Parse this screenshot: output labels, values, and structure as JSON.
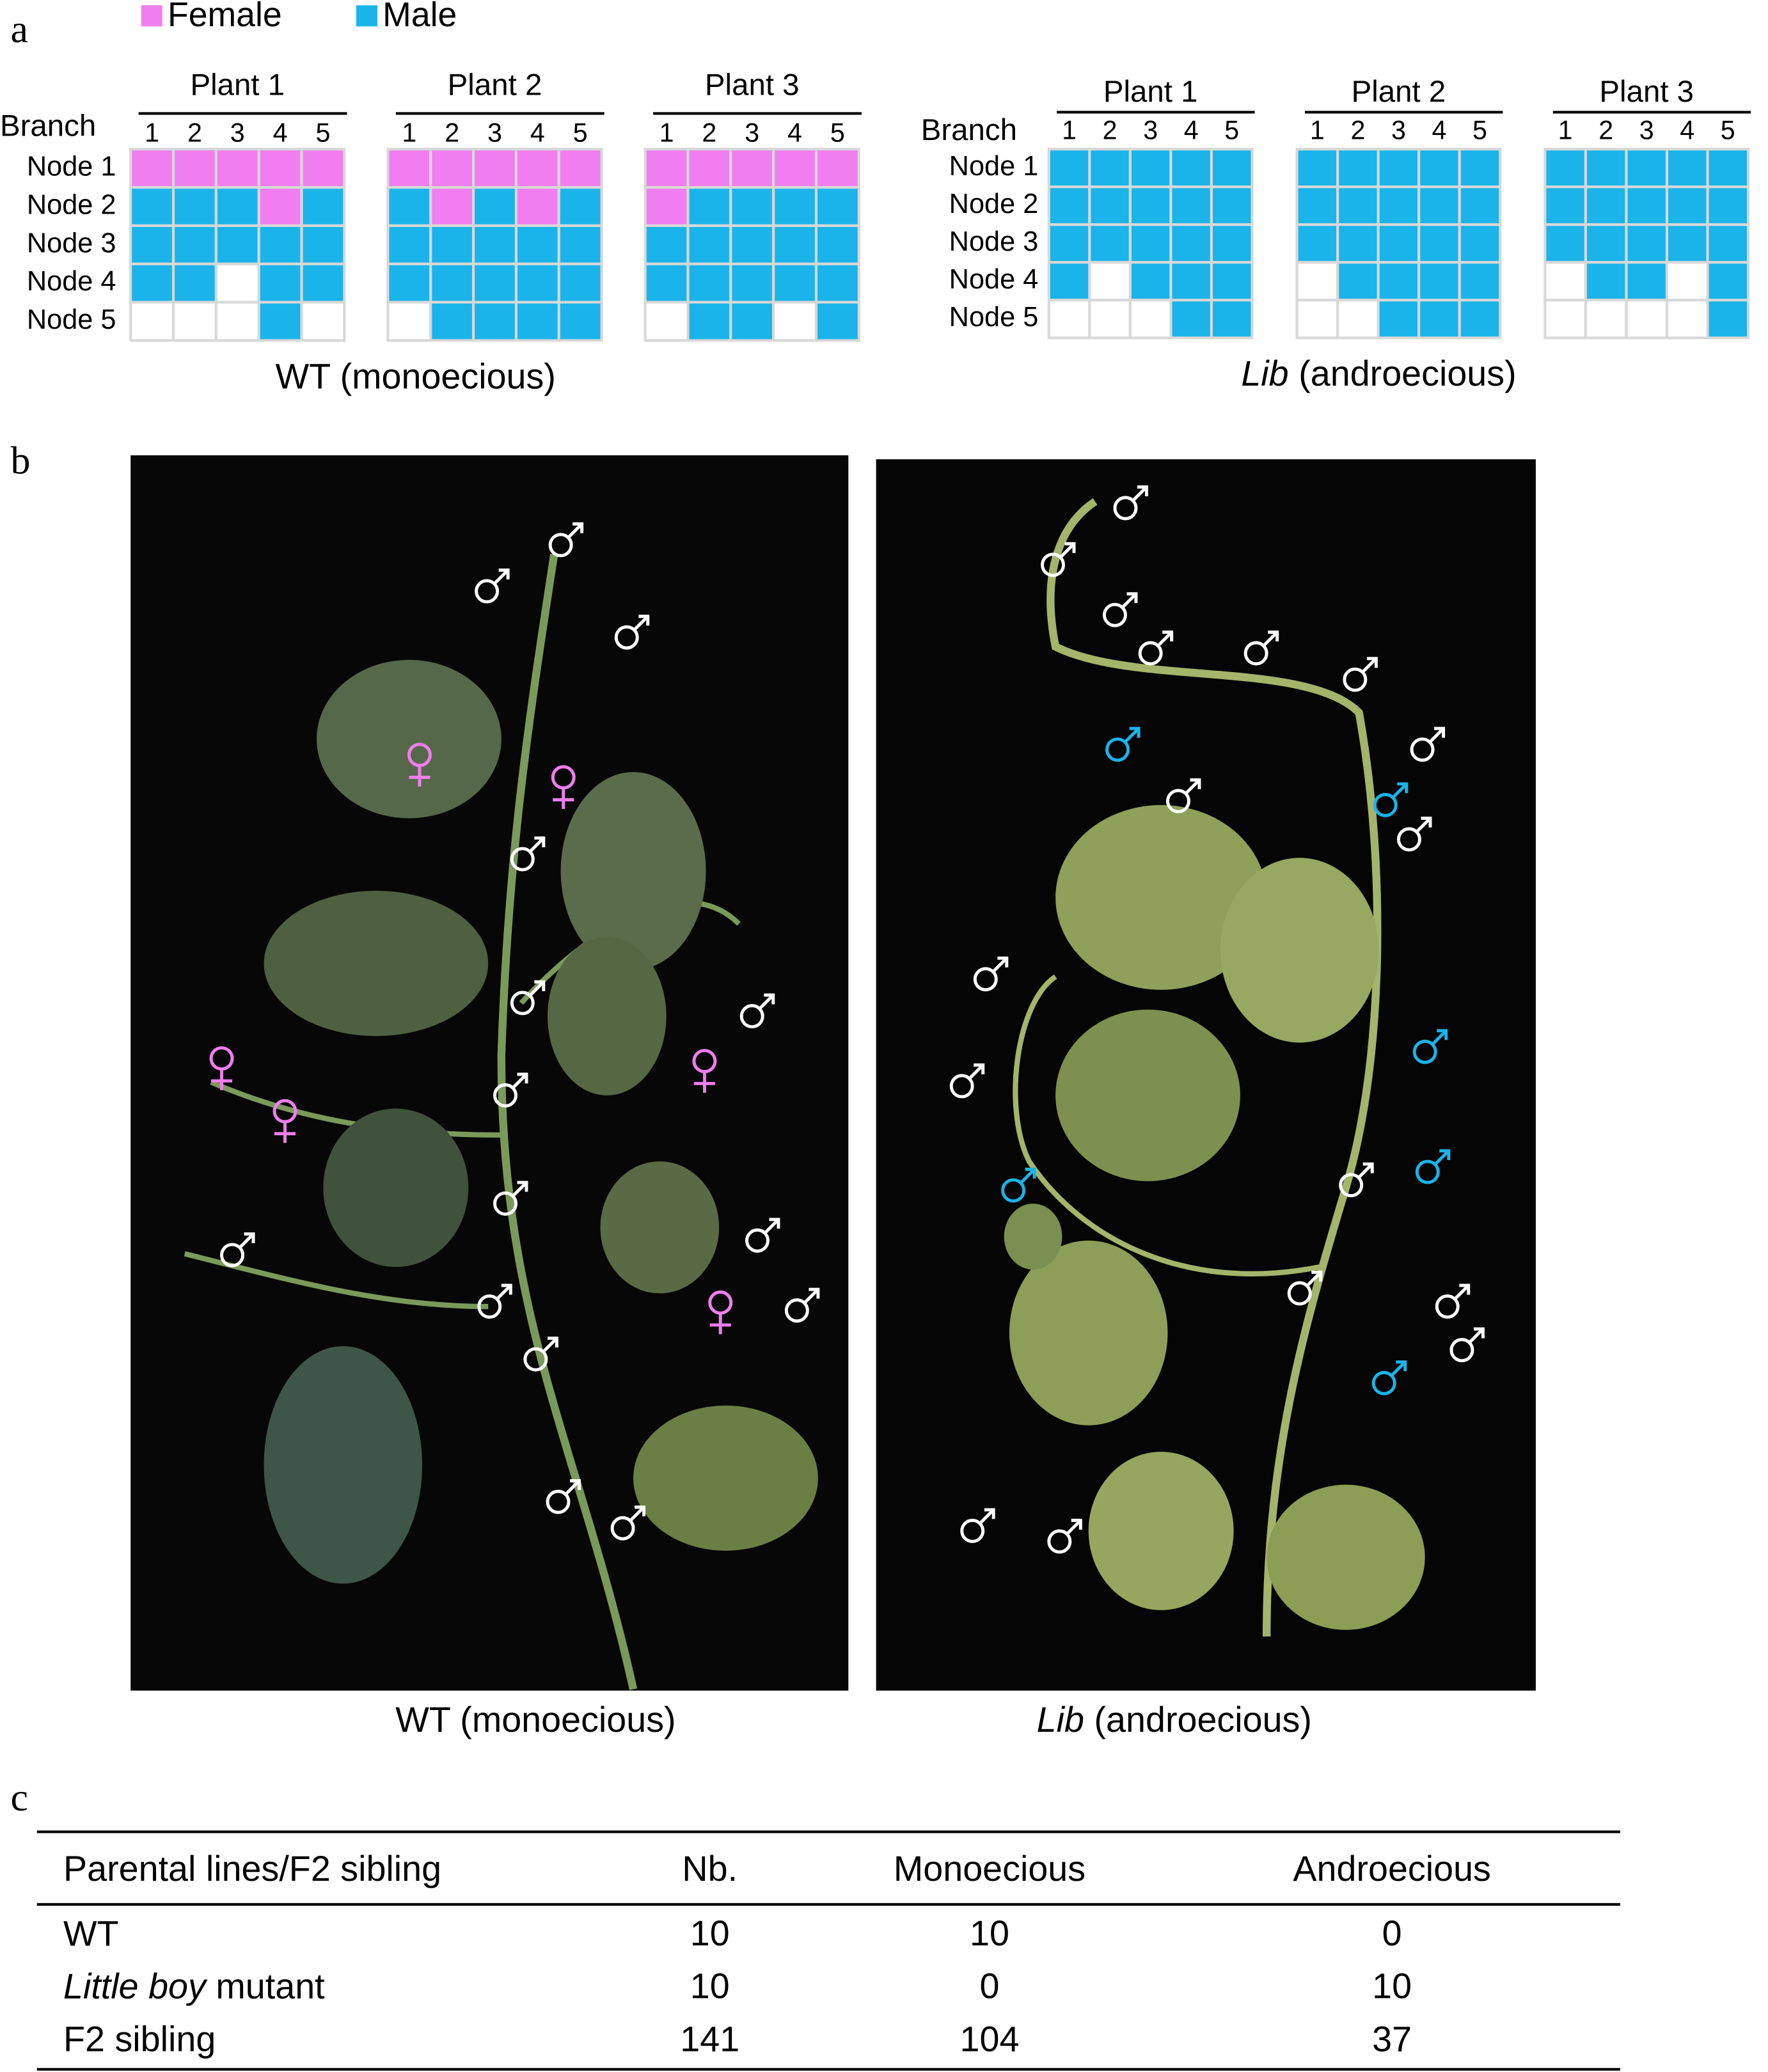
{
  "panel_a": {
    "label": "a",
    "legend": [
      {
        "name": "Female",
        "color": "#f07ef0"
      },
      {
        "name": "Male",
        "color": "#1ab4ea"
      }
    ],
    "groups": [
      {
        "caption": "WT (monoecious)",
        "branch_label": "Branch",
        "node_labels": [
          "Node 1",
          "Node 2",
          "Node 3",
          "Node 4",
          "Node 5"
        ],
        "plants": [
          {
            "name": "Plant 1",
            "branches": [
              1,
              2,
              3,
              4,
              5
            ],
            "cells": [
              [
                "Female",
                "Female",
                "Female",
                "Female",
                "Female"
              ],
              [
                "Male",
                "Male",
                "Male",
                "Female",
                "Male"
              ],
              [
                "Male",
                "Male",
                "Male",
                "Male",
                "Male"
              ],
              [
                "Male",
                "Male",
                null,
                "Male",
                "Male"
              ],
              [
                null,
                null,
                null,
                "Male",
                null
              ]
            ]
          },
          {
            "name": "Plant 2",
            "branches": [
              1,
              2,
              3,
              4,
              5
            ],
            "cells": [
              [
                "Female",
                "Female",
                "Female",
                "Female",
                "Female"
              ],
              [
                "Male",
                "Female",
                "Male",
                "Female",
                "Male"
              ],
              [
                "Male",
                "Male",
                "Male",
                "Male",
                "Male"
              ],
              [
                "Male",
                "Male",
                "Male",
                "Male",
                "Male"
              ],
              [
                null,
                "Male",
                "Male",
                "Male",
                "Male"
              ]
            ]
          },
          {
            "name": "Plant 3",
            "branches": [
              1,
              2,
              3,
              4,
              5
            ],
            "cells": [
              [
                "Female",
                "Female",
                "Female",
                "Female",
                "Female"
              ],
              [
                "Female",
                "Male",
                "Male",
                "Male",
                "Male"
              ],
              [
                "Male",
                "Male",
                "Male",
                "Male",
                "Male"
              ],
              [
                "Male",
                "Male",
                "Male",
                "Male",
                "Male"
              ],
              [
                null,
                "Male",
                "Male",
                null,
                "Male"
              ]
            ]
          }
        ]
      },
      {
        "caption_italic": "Lib",
        "caption": "(androecious)",
        "branch_label": "Branch",
        "node_labels": [
          "Node 1",
          "Node 2",
          "Node 3",
          "Node 4",
          "Node 5"
        ],
        "plants": [
          {
            "name": "Plant 1",
            "branches": [
              1,
              2,
              3,
              4,
              5
            ],
            "cells": [
              [
                "Male",
                "Male",
                "Male",
                "Male",
                "Male"
              ],
              [
                "Male",
                "Male",
                "Male",
                "Male",
                "Male"
              ],
              [
                "Male",
                "Male",
                "Male",
                "Male",
                "Male"
              ],
              [
                "Male",
                null,
                "Male",
                "Male",
                "Male"
              ],
              [
                null,
                null,
                null,
                "Male",
                "Male"
              ]
            ]
          },
          {
            "name": "Plant 2",
            "branches": [
              1,
              2,
              3,
              4,
              5
            ],
            "cells": [
              [
                "Male",
                "Male",
                "Male",
                "Male",
                "Male"
              ],
              [
                "Male",
                "Male",
                "Male",
                "Male",
                "Male"
              ],
              [
                "Male",
                "Male",
                "Male",
                "Male",
                "Male"
              ],
              [
                null,
                "Male",
                "Male",
                "Male",
                "Male"
              ],
              [
                null,
                null,
                "Male",
                "Male",
                "Male"
              ]
            ]
          },
          {
            "name": "Plant 3",
            "branches": [
              1,
              2,
              3,
              4,
              5
            ],
            "cells": [
              [
                "Male",
                "Male",
                "Male",
                "Male",
                "Male"
              ],
              [
                "Male",
                "Male",
                "Male",
                "Male",
                "Male"
              ],
              [
                "Male",
                "Male",
                "Male",
                "Male",
                "Male"
              ],
              [
                null,
                "Male",
                "Male",
                null,
                "Male"
              ],
              [
                null,
                null,
                null,
                null,
                "Male"
              ]
            ]
          }
        ]
      }
    ]
  },
  "panel_b": {
    "label": "b",
    "captions": [
      {
        "text": "WT (monoecious)"
      },
      {
        "italic": "Lib",
        "text": "(androecious)"
      }
    ]
  },
  "panel_c": {
    "label": "c",
    "table": {
      "header": [
        "Parental lines/F2 sibling",
        "Nb.",
        "Monoecious",
        "Androecious"
      ],
      "rows": [
        [
          {
            "text": "WT"
          },
          10,
          10,
          0
        ],
        [
          {
            "italic": "Little boy",
            "text": "mutant"
          },
          10,
          0,
          10
        ],
        [
          {
            "text": "F2 sibling"
          },
          141,
          104,
          37
        ]
      ]
    }
  }
}
